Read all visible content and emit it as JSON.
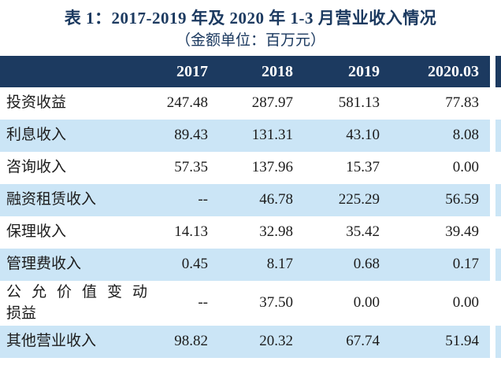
{
  "title": "表 1：2017-2019 年及 2020 年 1-3 月营业收入情况",
  "subtitle": "（金额单位：百万元）",
  "colors": {
    "header_bg": "#1C3A60",
    "header_text": "#FFFFFF",
    "row_alt_bg": "#CBE5F6",
    "title_color": "#1C3A60",
    "body_text": "#1C1C1C"
  },
  "chart_data": {
    "type": "table",
    "title": "表 1：2017-2019 年及 2020 年 1-3 月营业收入情况",
    "unit": "（金额单位：百万元）",
    "columns": [
      "",
      "2017",
      "2018",
      "2019",
      "2020.03"
    ],
    "rows": [
      {
        "label": "投资收益",
        "values": [
          "247.48",
          "287.97",
          "581.13",
          "77.83"
        ]
      },
      {
        "label": "利息收入",
        "values": [
          "89.43",
          "131.31",
          "43.10",
          "8.08"
        ]
      },
      {
        "label": "咨询收入",
        "values": [
          "57.35",
          "137.96",
          "15.37",
          "0.00"
        ]
      },
      {
        "label": "融资租赁收入",
        "values": [
          "--",
          "46.78",
          "225.29",
          "56.59"
        ]
      },
      {
        "label": "保理收入",
        "values": [
          "14.13",
          "32.98",
          "35.42",
          "39.49"
        ]
      },
      {
        "label": "管理费收入",
        "values": [
          "0.45",
          "8.17",
          "0.68",
          "0.17"
        ]
      },
      {
        "label": "公允价值变动损益",
        "values": [
          "--",
          "37.50",
          "0.00",
          "0.00"
        ]
      },
      {
        "label": "其他营业收入",
        "values": [
          "98.82",
          "20.32",
          "67.74",
          "51.94"
        ]
      }
    ]
  }
}
